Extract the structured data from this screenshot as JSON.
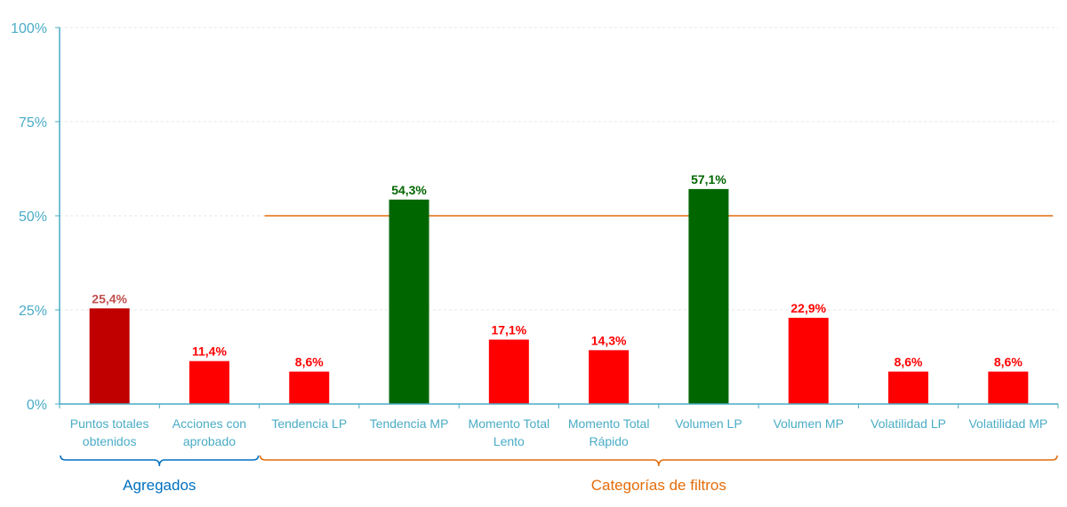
{
  "chart_data": {
    "type": "bar",
    "categories": [
      [
        "Puntos totales",
        "obtenidos"
      ],
      [
        "Acciones con",
        "aprobado"
      ],
      [
        "Tendencia LP"
      ],
      [
        "Tendencia MP"
      ],
      [
        "Momento Total",
        "Lento"
      ],
      [
        "Momento Total",
        "Rápido"
      ],
      [
        "Volumen LP"
      ],
      [
        "Volumen MP"
      ],
      [
        "Volatilidad LP"
      ],
      [
        "Volatilidad MP"
      ]
    ],
    "values": [
      25.4,
      11.4,
      8.6,
      54.3,
      17.1,
      14.3,
      57.1,
      22.9,
      8.6,
      8.6
    ],
    "value_labels": [
      "25,4%",
      "11,4%",
      "8,6%",
      "54,3%",
      "17,1%",
      "14,3%",
      "57,1%",
      "22,9%",
      "8,6%",
      "8,6%"
    ],
    "bar_colors": [
      "#c00000",
      "#ff0000",
      "#ff0000",
      "#006600",
      "#ff0000",
      "#ff0000",
      "#006600",
      "#ff0000",
      "#ff0000",
      "#ff0000"
    ],
    "label_colors": [
      "#c0504d",
      "#ff0000",
      "#ff0000",
      "#006600",
      "#ff0000",
      "#ff0000",
      "#006600",
      "#ff0000",
      "#ff0000",
      "#ff0000"
    ],
    "ylim": [
      0,
      100
    ],
    "yticks": [
      0,
      25,
      50,
      75,
      100
    ],
    "ytick_labels": [
      "0%",
      "25%",
      "50%",
      "75%",
      "100%"
    ],
    "reference_line": {
      "value": 50,
      "from_category": 2,
      "to_category": 9,
      "color": "#e46c0a"
    },
    "groups": [
      {
        "label": "Agregados",
        "from_category": 0,
        "to_category": 1,
        "color": "#0070c0"
      },
      {
        "label": "Categorías de filtros",
        "from_category": 2,
        "to_category": 9,
        "color": "#e46c0a"
      }
    ],
    "axis_color": "#4aacc6",
    "grid": true
  }
}
